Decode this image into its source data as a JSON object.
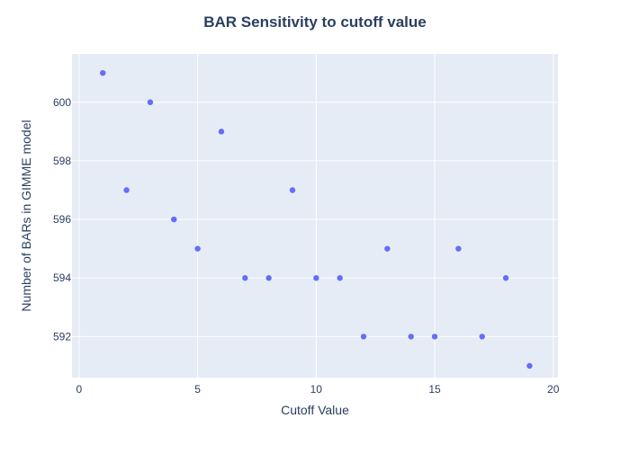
{
  "chart_data": {
    "type": "scatter",
    "title": "BAR Sensitivity to cutoff value",
    "xlabel": "Cutoff Value",
    "ylabel": "Number of BARs in GIMME model",
    "xlim": [
      -0.3,
      20.2
    ],
    "ylim": [
      590.6,
      601.65
    ],
    "xticks": [
      0,
      5,
      10,
      15,
      20
    ],
    "yticks": [
      592,
      594,
      596,
      598,
      600
    ],
    "grid": true,
    "legend": "none",
    "x": [
      1,
      2,
      3,
      4,
      5,
      6,
      7,
      8,
      9,
      10,
      11,
      12,
      13,
      14,
      15,
      16,
      17,
      18,
      19
    ],
    "y": [
      601,
      597,
      600,
      596,
      595,
      599,
      594,
      594,
      597,
      594,
      594,
      592,
      595,
      592,
      592,
      595,
      592,
      594,
      591
    ]
  },
  "colors": {
    "plot_bg": "#e5ecf6",
    "grid": "#ffffff",
    "marker": "#636efa",
    "text": "#2a3f5f"
  }
}
